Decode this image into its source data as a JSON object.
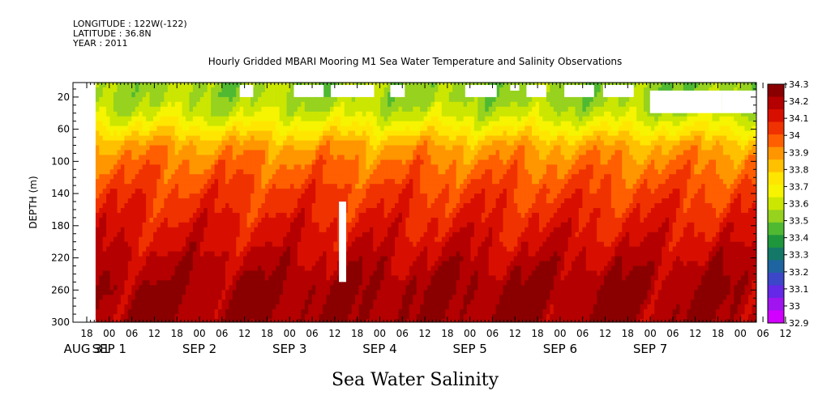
{
  "header": {
    "longitude": "LONGITUDE : 122W(-122)",
    "latitude": "LATITUDE : 36.8N",
    "year": "YEAR : 2011"
  },
  "chart_data": {
    "type": "heatmap",
    "title": "Hourly Gridded MBARI Mooring M1 Sea Water Temperature and Salinity Observations",
    "bottom_title": "Sea Water Salinity",
    "ylabel": "DEPTH (m)",
    "ylim": [
      300,
      0
    ],
    "y_ticks": [
      20,
      60,
      100,
      140,
      180,
      220,
      260,
      300
    ],
    "x_hour_ticks": [
      "18",
      "00",
      "06",
      "12",
      "18",
      "00",
      "06",
      "12",
      "18",
      "00",
      "06",
      "12",
      "18",
      "00",
      "06",
      "12",
      "18",
      "00",
      "06",
      "12",
      "18",
      "00",
      "06",
      "12",
      "18",
      "00",
      "06",
      "12",
      "18",
      "00",
      "06",
      "12"
    ],
    "x_date_labels": [
      "AUG 31",
      "SEP  1",
      "SEP  2",
      "SEP  3",
      "SEP  4",
      "SEP  5",
      "SEP  6",
      "SEP  7"
    ],
    "colorbar": {
      "levels": [
        "34.3",
        "34.2",
        "34.1",
        "34",
        "33.9",
        "33.8",
        "33.7",
        "33.6",
        "33.5",
        "33.4",
        "33.3",
        "33.2",
        "33.1",
        "33",
        "32.9"
      ],
      "colors": [
        "#8a0000",
        "#b40000",
        "#d80f00",
        "#f03200",
        "#ff5f00",
        "#ff9600",
        "#ffc000",
        "#ffe600",
        "#f6f400",
        "#cbe600",
        "#96d21e",
        "#50b932",
        "#1e963c",
        "#147868",
        "#1e64a0",
        "#3c46c8",
        "#6428e6",
        "#a014f0",
        "#d200ff"
      ]
    },
    "salinity_profile": {
      "depths": [
        5,
        20,
        40,
        60,
        80,
        100,
        120,
        140,
        160,
        180,
        200,
        220,
        240,
        260,
        280,
        300
      ],
      "values": [
        33.55,
        33.55,
        33.62,
        33.75,
        33.9,
        33.97,
        34.02,
        34.07,
        34.1,
        34.14,
        34.17,
        34.21,
        34.25,
        34.28,
        34.27,
        34.27
      ]
    },
    "missing_data": [
      {
        "day_start": 1.85,
        "day_end": 2.0,
        "depth_top": 5,
        "depth_bottom": 20
      },
      {
        "day_start": 2.45,
        "day_end": 2.78,
        "depth_top": 5,
        "depth_bottom": 20
      },
      {
        "day_start": 2.86,
        "day_end": 3.34,
        "depth_top": 5,
        "depth_bottom": 20
      },
      {
        "day_start": 3.52,
        "day_end": 3.68,
        "depth_top": 5,
        "depth_bottom": 20
      },
      {
        "day_start": 4.35,
        "day_end": 4.7,
        "depth_top": 5,
        "depth_bottom": 20
      },
      {
        "day_start": 4.85,
        "day_end": 4.95,
        "depth_top": 5,
        "depth_bottom": 12
      },
      {
        "day_start": 5.03,
        "day_end": 5.25,
        "depth_top": 5,
        "depth_bottom": 20
      },
      {
        "day_start": 5.45,
        "day_end": 5.78,
        "depth_top": 5,
        "depth_bottom": 20
      },
      {
        "day_start": 5.88,
        "day_end": 6.22,
        "depth_top": 5,
        "depth_bottom": 20
      },
      {
        "day_start": 6.4,
        "day_end": 7.2,
        "depth_top": 12,
        "depth_bottom": 40
      },
      {
        "day_start": 7.2,
        "day_end": 7.6,
        "depth_top": 12,
        "depth_bottom": 40
      },
      {
        "day_start": 2.95,
        "day_end": 3.03,
        "depth_top": 150,
        "depth_bottom": 250
      }
    ]
  }
}
